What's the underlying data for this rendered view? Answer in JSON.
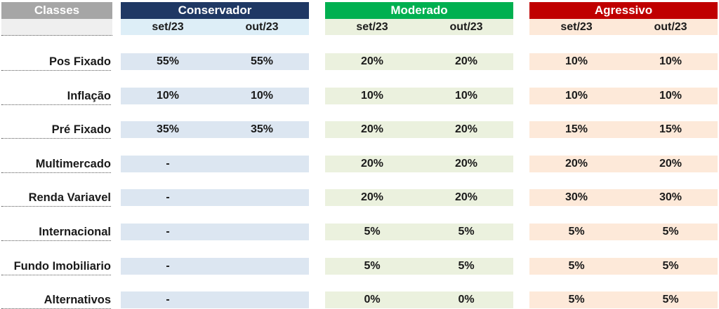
{
  "header": {
    "classes": "Classes"
  },
  "columns": [
    {
      "title": "Conservador",
      "header_bg": "#1f3864",
      "cell_bg": "#dce6f1",
      "sub_bg": "#ddeef7"
    },
    {
      "title": "Moderado",
      "header_bg": "#00b050",
      "cell_bg": "#ebf1de",
      "sub_bg": "#ebf1de"
    },
    {
      "title": "Agressivo",
      "header_bg": "#c00000",
      "cell_bg": "#fde9d9",
      "sub_bg": "#fde9d9"
    }
  ],
  "periods": [
    "set/23",
    "out/23"
  ],
  "rows": [
    {
      "label": "Pos Fixado",
      "values": [
        [
          "55%",
          "55%"
        ],
        [
          "20%",
          "20%"
        ],
        [
          "10%",
          "10%"
        ]
      ]
    },
    {
      "label": "Inflação",
      "values": [
        [
          "10%",
          "10%"
        ],
        [
          "10%",
          "10%"
        ],
        [
          "10%",
          "10%"
        ]
      ]
    },
    {
      "label": "Pré Fixado",
      "values": [
        [
          "35%",
          "35%"
        ],
        [
          "20%",
          "20%"
        ],
        [
          "15%",
          "15%"
        ]
      ]
    },
    {
      "label": "Multimercado",
      "values": [
        [
          "-",
          ""
        ],
        [
          "20%",
          "20%"
        ],
        [
          "20%",
          "20%"
        ]
      ]
    },
    {
      "label": "Renda Variavel",
      "values": [
        [
          "-",
          ""
        ],
        [
          "20%",
          "20%"
        ],
        [
          "30%",
          "30%"
        ]
      ]
    },
    {
      "label": "Internacional",
      "values": [
        [
          "-",
          ""
        ],
        [
          "5%",
          "5%"
        ],
        [
          "5%",
          "5%"
        ]
      ]
    },
    {
      "label": "Fundo Imobiliario",
      "values": [
        [
          "-",
          ""
        ],
        [
          "5%",
          "5%"
        ],
        [
          "5%",
          "5%"
        ]
      ]
    },
    {
      "label": "Alternativos",
      "values": [
        [
          "-",
          ""
        ],
        [
          "0%",
          "0%"
        ],
        [
          "5%",
          "5%"
        ]
      ]
    }
  ]
}
